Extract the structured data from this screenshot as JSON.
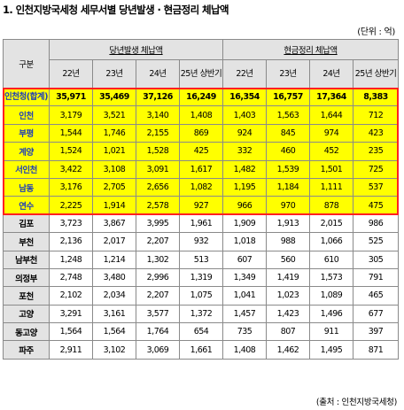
{
  "title": "1. 인천지방국세청 세무서별 당년발생 · 현금정리 체납액",
  "unit": "(단위 : 억)",
  "source": "(출처 : 인천지방국세청)",
  "header": {
    "region": "구분",
    "group_new": "당년발생 체납액",
    "group_cash": "현금정리 체납액",
    "years": [
      "22년",
      "23년",
      "24년",
      "25년 상반기"
    ]
  },
  "table_rows": [
    {
      "name": "인천청(합계)",
      "new": [
        "35,971",
        "35,469",
        "37,126",
        "16,249"
      ],
      "cash": [
        "16,354",
        "16,757",
        "17,364",
        "8,383"
      ]
    },
    {
      "name": "인천",
      "new": [
        "3,179",
        "3,521",
        "3,140",
        "1,408"
      ],
      "cash": [
        "1,403",
        "1,563",
        "1,644",
        "712"
      ]
    },
    {
      "name": "부평",
      "new": [
        "1,544",
        "1,746",
        "2,155",
        "869"
      ],
      "cash": [
        "924",
        "845",
        "974",
        "423"
      ]
    },
    {
      "name": "계양",
      "new": [
        "1,524",
        "1,021",
        "1,528",
        "425"
      ],
      "cash": [
        "332",
        "460",
        "452",
        "235"
      ]
    },
    {
      "name": "서인천",
      "new": [
        "3,422",
        "3,108",
        "3,091",
        "1,617"
      ],
      "cash": [
        "1,482",
        "1,539",
        "1,501",
        "725"
      ]
    },
    {
      "name": "남동",
      "new": [
        "3,176",
        "2,705",
        "2,656",
        "1,082"
      ],
      "cash": [
        "1,195",
        "1,184",
        "1,111",
        "537"
      ]
    },
    {
      "name": "연수",
      "new": [
        "2,225",
        "1,914",
        "2,578",
        "927"
      ],
      "cash": [
        "966",
        "970",
        "878",
        "475"
      ]
    },
    {
      "name": "김포",
      "new": [
        "3,723",
        "3,867",
        "3,995",
        "1,961"
      ],
      "cash": [
        "1,909",
        "1,913",
        "2,015",
        "986"
      ]
    },
    {
      "name": "부천",
      "new": [
        "2,136",
        "2,017",
        "2,207",
        "932"
      ],
      "cash": [
        "1,018",
        "988",
        "1,066",
        "525"
      ]
    },
    {
      "name": "남부천",
      "new": [
        "1,248",
        "1,214",
        "1,302",
        "513"
      ],
      "cash": [
        "607",
        "560",
        "610",
        "305"
      ]
    },
    {
      "name": "의정부",
      "new": [
        "2,748",
        "3,480",
        "2,996",
        "1,319"
      ],
      "cash": [
        "1,349",
        "1,419",
        "1,573",
        "791"
      ]
    },
    {
      "name": "포천",
      "new": [
        "2,102",
        "2,034",
        "2,207",
        "1,075"
      ],
      "cash": [
        "1,041",
        "1,023",
        "1,089",
        "465"
      ]
    },
    {
      "name": "고양",
      "new": [
        "3,291",
        "3,161",
        "3,577",
        "1,372"
      ],
      "cash": [
        "1,457",
        "1,423",
        "1,496",
        "677"
      ]
    },
    {
      "name": "동고양",
      "new": [
        "1,564",
        "1,564",
        "1,764",
        "654"
      ],
      "cash": [
        "735",
        "807",
        "911",
        "397"
      ]
    },
    {
      "name": "파주",
      "new": [
        "2,911",
        "3,102",
        "3,069",
        "1,661"
      ],
      "cash": [
        "1,408",
        "1,462",
        "1,495",
        "871"
      ]
    }
  ]
}
